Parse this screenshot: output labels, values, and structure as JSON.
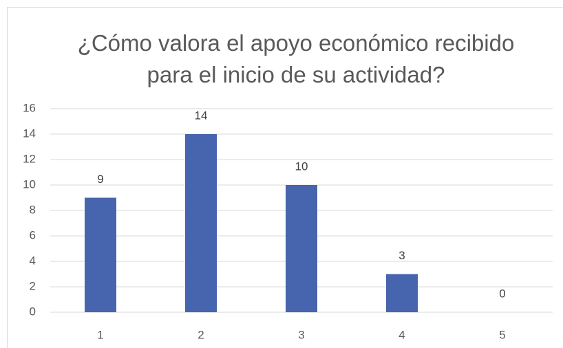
{
  "chart_data": {
    "type": "bar",
    "title": "¿Cómo valora el apoyo económico recibido para el inicio de su actividad?",
    "categories": [
      "1",
      "2",
      "3",
      "4",
      "5"
    ],
    "values": [
      9,
      14,
      10,
      3,
      0
    ],
    "color": "#4764ae",
    "ylim": [
      0,
      16
    ],
    "yticks": [
      0,
      2,
      4,
      6,
      8,
      10,
      12,
      14,
      16
    ],
    "grid": true,
    "data_labels": true
  }
}
